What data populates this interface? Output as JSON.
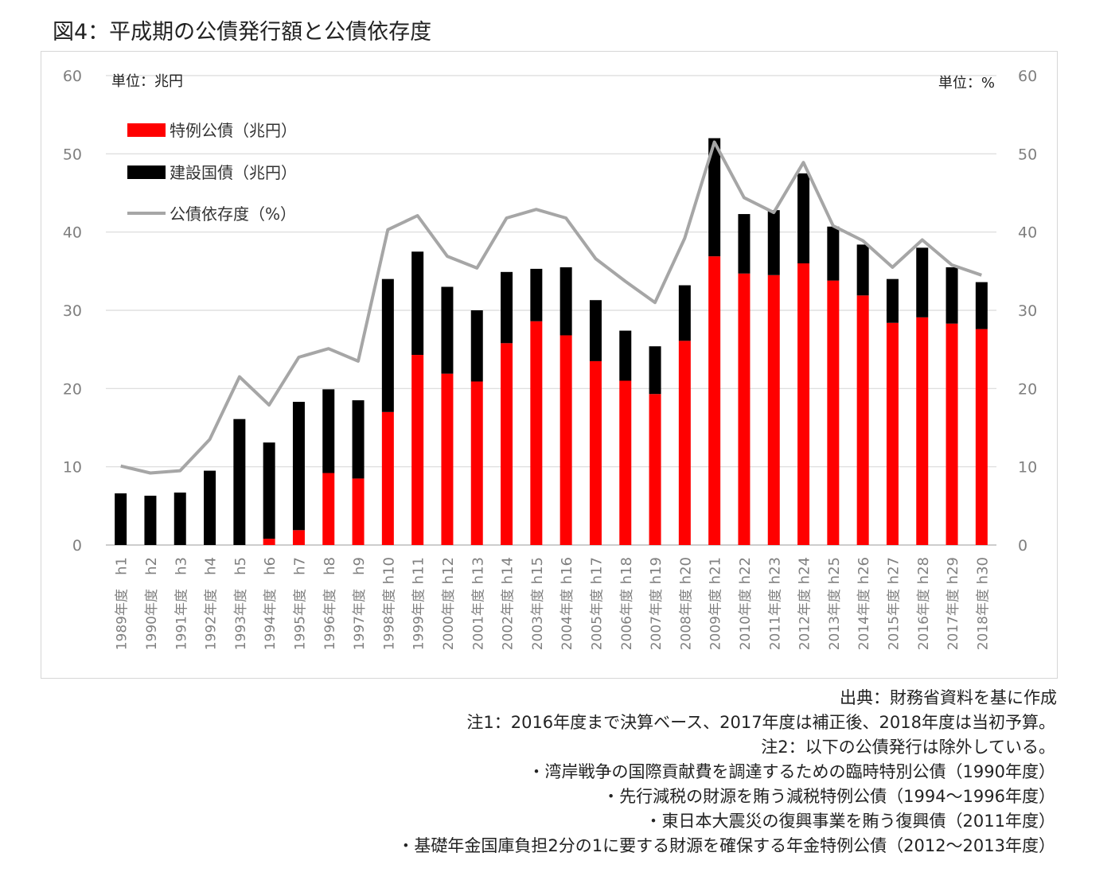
{
  "title": "図4：平成期の公債発行額と公債依存度",
  "colors": {
    "special_bonds": "#ff0000",
    "construction_bonds": "#000000",
    "dependency_line": "#a6a6a6",
    "grid": "#d9d9d9"
  },
  "chart_data": {
    "type": "bar",
    "stacked": true,
    "categories": [
      "h1",
      "h2",
      "h3",
      "h4",
      "h5",
      "h6",
      "h7",
      "h8",
      "h9",
      "h10",
      "h11",
      "h12",
      "h13",
      "h14",
      "h15",
      "h16",
      "h17",
      "h18",
      "h19",
      "h20",
      "h21",
      "h22",
      "h23",
      "h24",
      "h25",
      "h26",
      "h27",
      "h28",
      "h29",
      "h30"
    ],
    "category_sublabels": [
      "1989年度",
      "1990年度",
      "1991年度",
      "1992年度",
      "1993年度",
      "1994年度",
      "1995年度",
      "1996年度",
      "1997年度",
      "1998年度",
      "1999年度",
      "2000年度",
      "2001年度",
      "2002年度",
      "2003年度",
      "2004年度",
      "2005年度",
      "2006年度",
      "2007年度",
      "2008年度",
      "2009年度",
      "2010年度",
      "2011年度",
      "2012年度",
      "2013年度",
      "2014年度",
      "2015年度",
      "2016年度",
      "2017年度",
      "2018年度"
    ],
    "series": [
      {
        "name": "特例公債（兆円）",
        "type": "bar",
        "axis": "left",
        "values": [
          0,
          0,
          0,
          0,
          0,
          0.8,
          1.9,
          9.2,
          8.5,
          17.0,
          24.3,
          21.9,
          20.9,
          25.8,
          28.6,
          26.8,
          23.5,
          21.0,
          19.3,
          26.1,
          36.9,
          34.7,
          34.5,
          36.0,
          33.8,
          31.9,
          28.4,
          29.1,
          28.3,
          27.6
        ]
      },
      {
        "name": "建設国債（兆円）",
        "type": "bar",
        "axis": "left",
        "values": [
          6.6,
          6.3,
          6.7,
          9.5,
          16.1,
          12.3,
          16.4,
          10.7,
          10.0,
          17.0,
          13.2,
          11.1,
          9.1,
          9.1,
          6.7,
          8.7,
          7.8,
          6.4,
          6.1,
          7.1,
          15.1,
          7.6,
          8.3,
          11.5,
          6.9,
          6.5,
          5.6,
          8.9,
          7.2,
          6.0
        ]
      },
      {
        "name": "公債依存度（%）",
        "type": "line",
        "axis": "right",
        "values": [
          10.1,
          9.2,
          9.5,
          13.5,
          21.5,
          17.9,
          24.0,
          25.1,
          23.5,
          40.3,
          42.1,
          36.9,
          35.4,
          41.8,
          42.9,
          41.8,
          36.6,
          33.7,
          31.0,
          39.2,
          51.5,
          44.4,
          42.5,
          48.9,
          40.8,
          38.9,
          35.5,
          39.0,
          35.8,
          34.5
        ]
      }
    ],
    "ylim": [
      0,
      60
    ],
    "y_ticks": [
      0,
      10,
      20,
      30,
      40,
      50,
      60
    ],
    "y2lim": [
      0,
      60
    ],
    "y2_ticks": [
      0,
      10,
      20,
      30,
      40,
      50,
      60
    ],
    "y_unit_label": "単位：兆円",
    "y2_unit_label": "単位：%",
    "grid": true,
    "legend_position": "top-left"
  },
  "notes": [
    "出典：財務省資料を基に作成",
    "注1：2016年度まで決算ベース、2017年度は補正後、2018年度は当初予算。",
    "注2：以下の公債発行は除外している。",
    "・湾岸戦争の国際貢献費を調達するための臨時特別公債（1990年度）",
    "・先行減税の財源を賄う減税特例公債（1994～1996年度）",
    "・東日本大震災の復興事業を賄う復興債（2011年度）",
    "・基礎年金国庫負担2分の1に要する財源を確保する年金特例公債（2012～2013年度）"
  ]
}
